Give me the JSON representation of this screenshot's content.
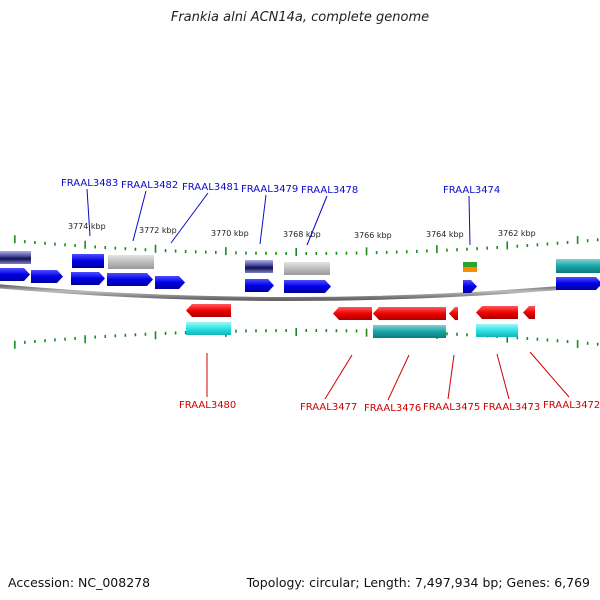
{
  "title": "Frankia alni ACN14a, complete genome",
  "footer": {
    "accession": "Accession: NC_008278",
    "summary": "Topology: circular; Length: 7,497,934 bp; Genes: 6,769"
  },
  "colors": {
    "forward_label": "#0a0acb",
    "reverse_label": "#d10000",
    "cds_forward": "#0000e6",
    "cds_reverse": "#f00000",
    "tick": "#1a8a1a",
    "backbone": "#777777"
  },
  "kbp_labels": [
    "3774 kbp",
    "3772 kbp",
    "3770 kbp",
    "3768 kbp",
    "3766 kbp",
    "3764 kbp",
    "3762 kbp"
  ],
  "forward_genes": [
    "FRAAL3483",
    "FRAAL3482",
    "FRAAL3481",
    "FRAAL3479",
    "FRAAL3478",
    "FRAAL3474"
  ],
  "reverse_genes": [
    "FRAAL3480",
    "FRAAL3477",
    "FRAAL3476",
    "FRAAL3475",
    "FRAAL3473",
    "FRAAL3472"
  ]
}
